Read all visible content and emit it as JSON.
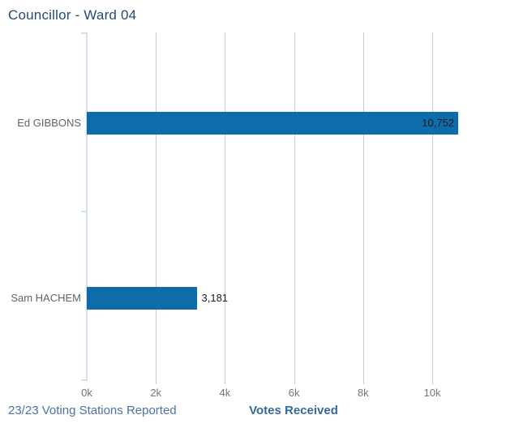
{
  "header": {
    "title": "Councillor - Ward 04"
  },
  "footer": {
    "status": "23/23 Voting Stations Reported",
    "axis_title": "Votes Received"
  },
  "colors": {
    "bar": "#0e6cab",
    "gridline": "#cccccc",
    "y_axis": "#d3dfec",
    "title_text": "#254a73",
    "status_text": "#4a74a3",
    "axis_title_text": "#336a9e",
    "tick_text": "#757575",
    "category_text": "#5d656c",
    "value_text": "#1a1a1a"
  },
  "chart_data": {
    "type": "bar",
    "orientation": "horizontal",
    "title": "Councillor - Ward 04",
    "xlabel": "Votes Received",
    "categories": [
      "Ed GIBBONS",
      "Sam HACHEM"
    ],
    "values": [
      10752,
      3181
    ],
    "value_labels": [
      "10,752",
      "3,181"
    ],
    "x_ticks": [
      {
        "value": 0,
        "label": "0k"
      },
      {
        "value": 2000,
        "label": "2k"
      },
      {
        "value": 4000,
        "label": "4k"
      },
      {
        "value": 6000,
        "label": "6k"
      },
      {
        "value": 8000,
        "label": "8k"
      },
      {
        "value": 10000,
        "label": "10k"
      }
    ],
    "xlim": [
      0,
      12000
    ],
    "grid": true,
    "legend": false
  }
}
